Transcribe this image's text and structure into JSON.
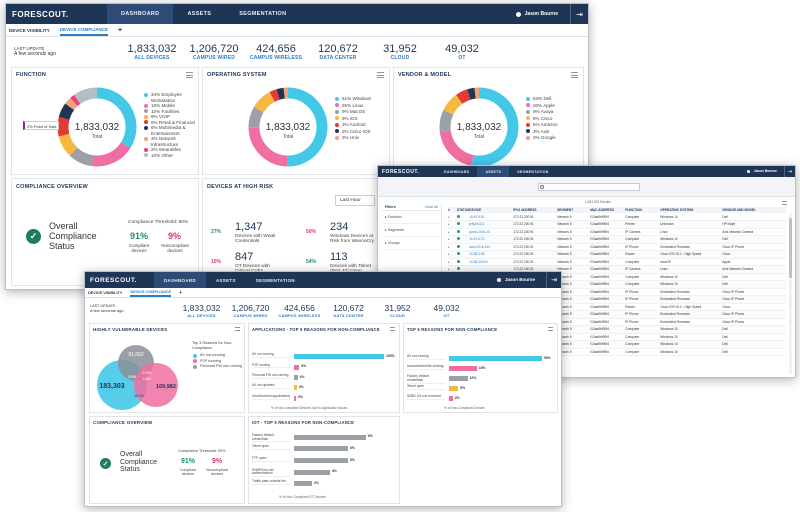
{
  "brand": "FORESCOUT.",
  "user": "Jason Bourne",
  "w1": {
    "nav": [
      "DASHBOARD",
      "ASSETS",
      "SEGMENTATION"
    ],
    "subtabs": [
      "DEVICE VISIBILITY",
      "DEVICE COMPLIANCE",
      "+"
    ],
    "last_update_label": "LAST UPDATE",
    "last_update_value": "A few seconds ago",
    "stats": [
      {
        "v": "1,833,032",
        "l": "ALL DEVICES"
      },
      {
        "v": "1,206,720",
        "l": "CAMPUS WIRED"
      },
      {
        "v": "424,656",
        "l": "CAMPUS WIRELESS"
      },
      {
        "v": "120,672",
        "l": "DATA CENTER"
      },
      {
        "v": "31,952",
        "l": "CLOUD"
      },
      {
        "v": "49,032",
        "l": "OT"
      }
    ],
    "function": {
      "title": "FUNCTION",
      "total": "1,833,032",
      "total_label": "Total",
      "tooltip": "2% Point of Sale",
      "legend": [
        {
          "t": "34% Employee Workstation",
          "c": "#44c8e8"
        },
        {
          "t": "18% Mobile",
          "c": "#f06fa2"
        },
        {
          "t": "10% Facilities",
          "c": "#9aa0a6"
        },
        {
          "t": "9% VOIP",
          "c": "#f6b840"
        },
        {
          "t": "8% Retail & Financial",
          "c": "#e53935"
        },
        {
          "t": "6% Multimedia & Entertainment",
          "c": "#1e3556"
        },
        {
          "t": "3% Network Infrastructure",
          "c": "#f4a07a"
        },
        {
          "t": "2% Wearables",
          "c": "#ec407a"
        },
        {
          "t": "10% Other",
          "c": "#b0bec5"
        }
      ]
    },
    "os": {
      "title": "OPERATING SYSTEM",
      "total": "1,833,032",
      "total_label": "Total",
      "legend": [
        {
          "t": "51% Windows",
          "c": "#44c8e8"
        },
        {
          "t": "25% Linux",
          "c": "#f06fa2"
        },
        {
          "t": "9% MacOS",
          "c": "#9aa0a6"
        },
        {
          "t": "9% iOS",
          "c": "#f6b840"
        },
        {
          "t": "3% Android",
          "c": "#e53935"
        },
        {
          "t": "3% Cisco IOS",
          "c": "#1e3556"
        },
        {
          "t": "2% Unix",
          "c": "#f4a07a"
        }
      ]
    },
    "vendor": {
      "title": "VENDOR & MODEL",
      "total": "1,833,032",
      "total_label": "Total",
      "legend": [
        {
          "t": "53% Dell",
          "c": "#44c8e8"
        },
        {
          "t": "20% Apple",
          "c": "#f06fa2"
        },
        {
          "t": "9% Avaya",
          "c": "#9aa0a6"
        },
        {
          "t": "8% Cisco",
          "c": "#f6b840"
        },
        {
          "t": "5% Amazon",
          "c": "#e53935"
        },
        {
          "t": "3% Axis",
          "c": "#1e3556"
        },
        {
          "t": "2% Google",
          "c": "#f4a07a"
        }
      ]
    },
    "compliance": {
      "title": "COMPLIANCE OVERVIEW",
      "status": "Overall Compliance Status",
      "threshold": "Compliance Threshold: 90%",
      "compliant_pct": "91%",
      "compliant_label": "Compliant devices",
      "noncompliant_pct": "9%",
      "noncompliant_label": "Noncompliant devices"
    },
    "risk": {
      "title": "DEVICES AT HIGH RISK",
      "range": "Last Hour",
      "items": [
        {
          "n": "1,347",
          "pct": "27%",
          "desc": "Devices with Weak Credentials",
          "dir": "up"
        },
        {
          "n": "234",
          "pct": "50%",
          "desc": "Windows Devices at Risk from WannaCry",
          "dir": "down"
        },
        {
          "n": "847",
          "pct": "10%",
          "desc": "OT Devices with Critical CVEs",
          "dir": "down"
        },
        {
          "n": "113",
          "pct": "54%",
          "desc": "Devices with Telnet (Port 23) Open",
          "dir": "up"
        }
      ]
    }
  },
  "w2": {
    "nav": [
      "DASHBOARD",
      "ASSETS",
      "SEGMENTATION"
    ],
    "filters": {
      "title": "Filters",
      "clear": "Clear All",
      "items": [
        "Function",
        "Segments",
        "Groups"
      ]
    },
    "results": "1,833,032 Results",
    "columns": [
      "#",
      "STATUS",
      "DEVICE",
      "IPV4 ADDRESS",
      "SEGMENT",
      "MAC ADDRESS",
      "FUNCTION",
      "OPERATING SYSTEM",
      "VENDOR AND MODEL"
    ],
    "rows": [
      [
        "10.67.6.61",
        "172.22.200.91",
        "Network 5",
        "f13aa9bf90f4",
        "Computer",
        "Windows 10",
        "Dell"
      ],
      [
        "jeff-ph1111",
        "172.22.200.91",
        "Network 5",
        "f13aa9bf90f4",
        "Printer",
        "Unknown",
        "HP Inkjet"
      ],
      [
        "guest-2016-15",
        "172.22.200.91",
        "Network 5",
        "f13aa9bf90f4",
        "IP Camera",
        "Linux",
        "Axis Network Camera"
      ],
      [
        "10.67.6.70",
        "172.22.200.91",
        "Network 5",
        "f13aa9bf90f4",
        "Computer",
        "Windows 10",
        "Dell"
      ],
      [
        "adm-2016-133",
        "172.22.200.91",
        "Network 5",
        "f13aa9bf90f4",
        "IP Phone",
        "Embedded Firmware",
        "Cisco IP Phone"
      ],
      [
        "10.65.2.95",
        "172.22.200.91",
        "Network 5",
        "f13aa9bf90f4",
        "Router",
        "Cisco IOS 15.2 - High Speed",
        "Cisco"
      ],
      [
        "10.65.200.91",
        "172.22.200.91",
        "Network 5",
        "f13aa9bf90f4",
        "Computer",
        "macOS",
        "Apple"
      ],
      [
        "",
        "172.22.200.91",
        "Network 5",
        "f13aa9bf90f4",
        "IP Camera",
        "Linux",
        "Axis Network Camera"
      ],
      [
        "",
        "172.22.200.91",
        "Network 5",
        "f13aa9bf90f4",
        "Computer",
        "Windows 10",
        "Dell"
      ],
      [
        "",
        "172.22.200.91",
        "Network 5",
        "f13aa9bf90f4",
        "Computer",
        "Windows 10",
        "Dell"
      ],
      [
        "",
        "172.22.200.91",
        "Network 5",
        "f13aa9bf90f4",
        "IP Phone",
        "Embedded Firmware",
        "Cisco IP Phone"
      ],
      [
        "",
        "172.22.200.91",
        "Network 5",
        "f13aa9bf90f4",
        "IP Phone",
        "Embedded Firmware",
        "Cisco IP Phone"
      ],
      [
        "",
        "172.22.200.91",
        "Network 5",
        "f13aa9bf90f4",
        "Router",
        "Cisco IOS 15.2 - High Speed",
        "Cisco"
      ],
      [
        "",
        "172.22.200.91",
        "Network 5",
        "f13aa9bf90f4",
        "IP Phone",
        "Embedded Firmware",
        "Cisco IP Phone"
      ],
      [
        "",
        "172.22.200.91",
        "Network 5",
        "f13aa9bf90f4",
        "IP Phone",
        "Embedded Firmware",
        "Cisco IP Phone"
      ],
      [
        "",
        "172.22.200.91",
        "Network 5",
        "f13aa9bf90f4",
        "Computer",
        "Windows 10",
        "Dell"
      ],
      [
        "",
        "172.22.200.91",
        "Network 5",
        "f13aa9bf90f4",
        "Computer",
        "Windows 10",
        "Dell"
      ],
      [
        "",
        "172.22.200.91",
        "Network 5",
        "f13aa9bf90f4",
        "Computer",
        "Windows 10",
        "Dell"
      ],
      [
        "",
        "172.22.200.91",
        "Network 5",
        "f13aa9bf90f4",
        "Computer",
        "Windows 10",
        "Dell"
      ]
    ]
  },
  "w3": {
    "nav": [
      "DASHBOARD",
      "ASSETS",
      "SEGMENTATION"
    ],
    "subtabs": [
      "DEVICE VISIBILITY",
      "DEVICE COMPLIANCE",
      "+"
    ],
    "last_update_label": "LAST UPDATE",
    "last_update_value": "A few seconds ago",
    "stats": [
      {
        "v": "1,833,032",
        "l": "ALL DEVICES"
      },
      {
        "v": "1,206,720",
        "l": "CAMPUS WIRED"
      },
      {
        "v": "424,656",
        "l": "CAMPUS WIRELESS"
      },
      {
        "v": "120,672",
        "l": "DATA CENTER"
      },
      {
        "v": "31,952",
        "l": "CLOUD"
      },
      {
        "v": "49,032",
        "l": "OT"
      }
    ],
    "venn": {
      "title": "HIGHLY VULNERABLE DEVICES",
      "legend_title": "Top 3 Reasons for Non-Compliance",
      "a": "183,303",
      "b": "91,652",
      "c": "109,982",
      "ab": "27,491",
      "bc": "5,498",
      "abc": "1,834",
      "all3": "36,721",
      "legend": [
        {
          "t": "AV not running",
          "c": "#44c8e8"
        },
        {
          "t": "P2P running",
          "c": "#f06fa2"
        },
        {
          "t": "Personal FW not running",
          "c": "#9aa0a6"
        }
      ]
    },
    "apps": {
      "title": "APPLICATIONS - TOP 5 REASONS FOR NON-COMPLIANCE",
      "footer": "% of Non-compliant Devices due to Application Issues",
      "bars": [
        {
          "l": "AV not running",
          "v": 100
        },
        {
          "l": "P2P running",
          "v": 6
        },
        {
          "l": "Personal FW not running",
          "v": 4
        },
        {
          "l": "AV not updated",
          "v": 3
        },
        {
          "l": "Unauthorized applications",
          "v": 2
        }
      ]
    },
    "top5": {
      "title": "TOP 5 REASONS FOR NON-COMPLIANCE",
      "footer": "% of Non-Compliant Devices",
      "bars": [
        {
          "l": "AV not running",
          "v": 50
        },
        {
          "l": "Unauthorized file sharing",
          "v": 15
        },
        {
          "l": "Factory default credentials",
          "v": 10
        },
        {
          "l": "Telnet open",
          "v": 5
        },
        {
          "l": "SMB1.0/1 not removed",
          "v": 2
        }
      ]
    },
    "compliance": {
      "title": "COMPLIANCE OVERVIEW",
      "status": "Overall Compliance Status",
      "threshold": "Compliance Threshold: 90%",
      "compliant_pct": "91%",
      "compliant_label": "Compliant devices",
      "noncompliant_pct": "9%",
      "noncompliant_label": "Noncompliant devices"
    },
    "iot": {
      "title": "IOT - TOP 5 REASONS FOR NON-COMPLIANCE",
      "footer": "% of Non-Compliant IOT Devices",
      "bars": [
        {
          "l": "Factory default credentials",
          "v": 8
        },
        {
          "l": "Telnet open",
          "v": 6
        },
        {
          "l": "FTP open",
          "v": 6
        },
        {
          "l": "SNMP/non-std authentication",
          "v": 4
        },
        {
          "l": "Traffic pass outside the",
          "v": 2
        }
      ]
    }
  }
}
